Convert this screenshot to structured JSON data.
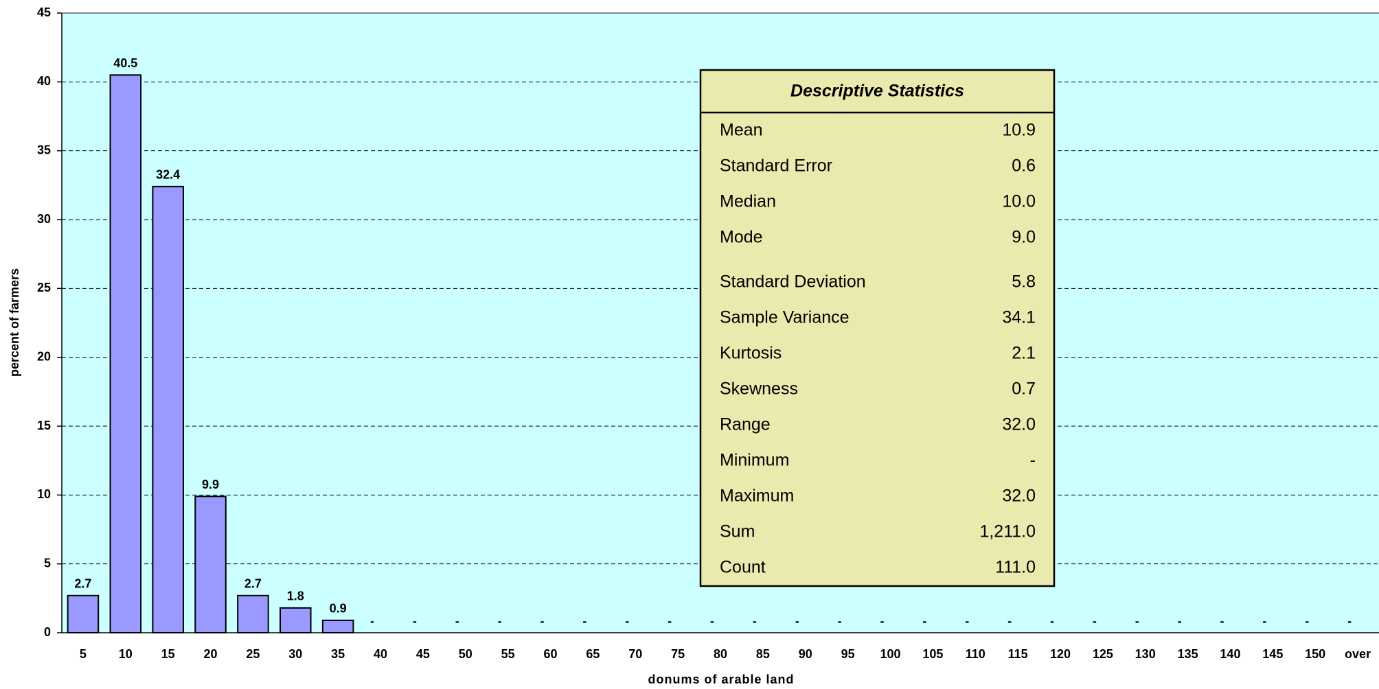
{
  "chart_data": {
    "type": "bar",
    "x_label": "donums of arable land",
    "y_label": "percent of farmers",
    "categories": [
      "5",
      "10",
      "15",
      "20",
      "25",
      "30",
      "35",
      "40",
      "45",
      "50",
      "55",
      "60",
      "65",
      "70",
      "75",
      "80",
      "85",
      "90",
      "95",
      "100",
      "105",
      "110",
      "115",
      "120",
      "125",
      "130",
      "135",
      "140",
      "145",
      "150",
      "over"
    ],
    "values": [
      2.7,
      40.5,
      32.4,
      9.9,
      2.7,
      1.8,
      0.9,
      0,
      0,
      0,
      0,
      0,
      0,
      0,
      0,
      0,
      0,
      0,
      0,
      0,
      0,
      0,
      0,
      0,
      0,
      0,
      0,
      0,
      0,
      0,
      0
    ],
    "value_labels": [
      "2.7",
      "40.5",
      "32.4",
      "9.9",
      "2.7",
      "1.8",
      "0.9",
      "-",
      "-",
      "-",
      "-",
      "-",
      "-",
      "-",
      "-",
      "-",
      "-",
      "-",
      "-",
      "-",
      "-",
      "-",
      "-",
      "-",
      "-",
      "-",
      "-",
      "-",
      "-",
      "-",
      "-"
    ],
    "color": "#9999ff",
    "background": "#ccffff",
    "ylim": [
      0,
      45
    ],
    "yticks": [
      0,
      5,
      10,
      15,
      20,
      25,
      30,
      35,
      40,
      45
    ],
    "grid": true
  },
  "stats": {
    "title": "Descriptive Statistics",
    "rows": [
      [
        "Mean",
        "10.9"
      ],
      [
        "Standard Error",
        "0.6"
      ],
      [
        "Median",
        "10.0"
      ],
      [
        "Mode",
        "9.0"
      ],
      [
        "Standard Deviation",
        "5.8"
      ],
      [
        "Sample Variance",
        "34.1"
      ],
      [
        "Kurtosis",
        "2.1"
      ],
      [
        "Skewness",
        "0.7"
      ],
      [
        "Range",
        "32.0"
      ],
      [
        "Minimum",
        "-"
      ],
      [
        "Maximum",
        "32.0"
      ],
      [
        "Sum",
        "1,211.0"
      ],
      [
        "Count",
        "111.0"
      ]
    ]
  }
}
